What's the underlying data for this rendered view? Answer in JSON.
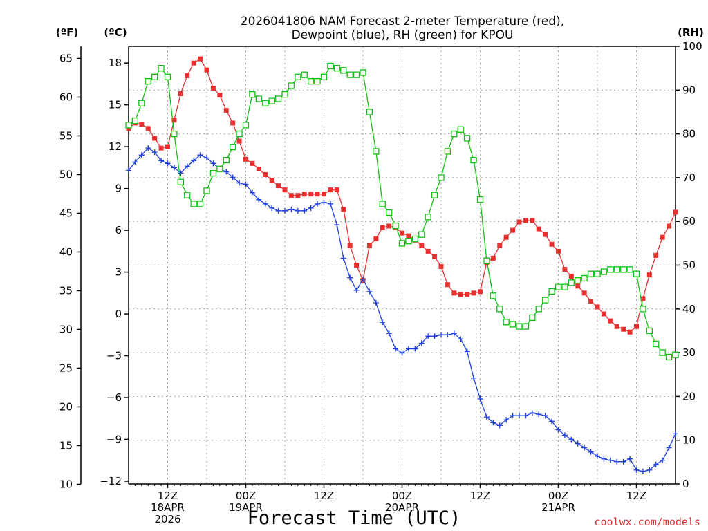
{
  "title_line1": "2026041806 NAM Forecast 2-meter Temperature (red),",
  "title_line2": "Dewpoint (blue), RH (green) for KPOU",
  "unit_left_f": "(ºF)",
  "unit_left_c": "(ºC)",
  "unit_right": "(RH)",
  "xlabel": "Forecast Time (UTC)",
  "credit": "coolwx.com/models",
  "colors": {
    "temperature": "#e83030",
    "dewpoint": "#2040e0",
    "rh": "#10c010"
  },
  "chart_data": {
    "type": "line",
    "x_unit": "forecast hour from 2026-04-18 06Z",
    "x_range": [
      0,
      84
    ],
    "x_ticks": [
      {
        "x": 6,
        "lines": [
          "12Z",
          "18APR",
          "2026"
        ]
      },
      {
        "x": 18,
        "lines": [
          "00Z",
          "19APR"
        ]
      },
      {
        "x": 30,
        "lines": [
          "12Z"
        ]
      },
      {
        "x": 42,
        "lines": [
          "00Z",
          "20APR"
        ]
      },
      {
        "x": 54,
        "lines": [
          "12Z"
        ]
      },
      {
        "x": 66,
        "lines": [
          "00Z",
          "21APR"
        ]
      },
      {
        "x": 78,
        "lines": [
          "12Z"
        ]
      }
    ],
    "y_celsius": {
      "range": [
        -12.2,
        19.2
      ],
      "ticks": [
        18,
        15,
        12,
        9,
        6,
        3,
        0,
        -3,
        -6,
        -9,
        -12
      ],
      "tick_labels": [
        "18",
        "15",
        "12",
        "9",
        "6",
        "3",
        "0",
        "−3",
        "−6",
        "−9",
        "−12"
      ]
    },
    "y_fahrenheit": {
      "ticks": [
        65,
        60,
        55,
        50,
        45,
        40,
        35,
        30,
        25,
        20,
        15,
        10
      ]
    },
    "y_rh": {
      "range": [
        0,
        100
      ],
      "ticks": [
        100,
        90,
        80,
        70,
        60,
        50,
        40,
        30,
        20,
        10,
        0
      ]
    },
    "series": [
      {
        "name": "Temperature",
        "unit": "C",
        "marker": "filled-square",
        "x": [
          0,
          1,
          2,
          3,
          4,
          5,
          6,
          7,
          8,
          9,
          10,
          11,
          12,
          13,
          14,
          15,
          16,
          17,
          18,
          19,
          20,
          21,
          22,
          23,
          24,
          25,
          26,
          27,
          28,
          29,
          30,
          31,
          32,
          33,
          34,
          35,
          36,
          37,
          38,
          39,
          40,
          41,
          42,
          43,
          44,
          45,
          46,
          47,
          48,
          49,
          50,
          51,
          52,
          53,
          54,
          55,
          56,
          57,
          58,
          59,
          60,
          61,
          62,
          63,
          64,
          65,
          66,
          67,
          68,
          69,
          70,
          71,
          72,
          73,
          74,
          75,
          76,
          77,
          78,
          79,
          80,
          81,
          82,
          83,
          84
        ],
        "values": [
          13.3,
          13.7,
          13.6,
          13.3,
          12.6,
          11.9,
          12.0,
          13.9,
          15.8,
          17.1,
          18.0,
          18.3,
          17.5,
          16.2,
          15.7,
          14.6,
          13.7,
          12.4,
          11.1,
          10.8,
          10.4,
          10.0,
          9.6,
          9.2,
          8.9,
          8.5,
          8.5,
          8.6,
          8.6,
          8.6,
          8.6,
          8.9,
          8.9,
          7.5,
          4.9,
          3.5,
          2.4,
          4.9,
          5.4,
          6.2,
          6.3,
          6.2,
          5.8,
          5.6,
          5.3,
          4.9,
          4.5,
          4.1,
          3.4,
          2.1,
          1.5,
          1.4,
          1.4,
          1.5,
          1.6,
          3.7,
          4.0,
          4.9,
          5.5,
          6.0,
          6.6,
          6.7,
          6.7,
          6.1,
          5.7,
          5.0,
          4.5,
          3.2,
          2.7,
          2.0,
          1.5,
          0.9,
          0.5,
          0.0,
          -0.5,
          -0.9,
          -1.1,
          -1.3,
          -0.9,
          1.1,
          2.8,
          4.2,
          5.5,
          6.3,
          7.3
        ]
      },
      {
        "name": "Dewpoint",
        "unit": "C",
        "marker": "plus",
        "x": [
          0,
          1,
          2,
          3,
          4,
          5,
          6,
          7,
          8,
          9,
          10,
          11,
          12,
          13,
          14,
          15,
          16,
          17,
          18,
          19,
          20,
          21,
          22,
          23,
          24,
          25,
          26,
          27,
          28,
          29,
          30,
          31,
          32,
          33,
          34,
          35,
          36,
          37,
          38,
          39,
          40,
          41,
          42,
          43,
          44,
          45,
          46,
          47,
          48,
          49,
          50,
          51,
          52,
          53,
          54,
          55,
          56,
          57,
          58,
          59,
          60,
          61,
          62,
          63,
          64,
          65,
          66,
          67,
          68,
          69,
          70,
          71,
          72,
          73,
          74,
          75,
          76,
          77,
          78,
          79,
          80,
          81,
          82,
          83,
          84
        ],
        "values": [
          10.3,
          10.9,
          11.4,
          11.9,
          11.6,
          11.0,
          10.8,
          10.5,
          10.1,
          10.6,
          11.0,
          11.4,
          11.2,
          10.8,
          10.4,
          10.2,
          9.8,
          9.4,
          9.3,
          8.7,
          8.2,
          7.9,
          7.6,
          7.4,
          7.4,
          7.5,
          7.4,
          7.4,
          7.6,
          7.9,
          8.0,
          7.9,
          6.4,
          4.0,
          2.6,
          1.7,
          2.5,
          1.6,
          0.8,
          -0.6,
          -1.4,
          -2.5,
          -2.8,
          -2.5,
          -2.5,
          -2.1,
          -1.6,
          -1.6,
          -1.5,
          -1.5,
          -1.4,
          -1.8,
          -2.7,
          -4.6,
          -6.1,
          -7.4,
          -7.8,
          -8.0,
          -7.6,
          -7.3,
          -7.3,
          -7.3,
          -7.1,
          -7.2,
          -7.3,
          -7.7,
          -8.3,
          -8.7,
          -9.0,
          -9.3,
          -9.6,
          -9.9,
          -10.2,
          -10.4,
          -10.5,
          -10.6,
          -10.6,
          -10.4,
          -11.2,
          -11.3,
          -11.2,
          -10.8,
          -10.5,
          -9.6,
          -8.6
        ]
      },
      {
        "name": "RH",
        "unit": "%",
        "marker": "open-square",
        "x": [
          0,
          1,
          2,
          3,
          4,
          5,
          6,
          7,
          8,
          9,
          10,
          11,
          12,
          13,
          14,
          15,
          16,
          17,
          18,
          19,
          20,
          21,
          22,
          23,
          24,
          25,
          26,
          27,
          28,
          29,
          30,
          31,
          32,
          33,
          34,
          35,
          36,
          37,
          38,
          39,
          40,
          41,
          42,
          43,
          44,
          45,
          46,
          47,
          48,
          49,
          50,
          51,
          52,
          53,
          54,
          55,
          56,
          57,
          58,
          59,
          60,
          61,
          62,
          63,
          64,
          65,
          66,
          67,
          68,
          69,
          70,
          71,
          72,
          73,
          74,
          75,
          76,
          77,
          78,
          79,
          80,
          81,
          82,
          83,
          84
        ],
        "values": [
          82,
          83,
          87,
          92,
          93,
          95,
          93,
          80,
          69,
          66,
          64,
          64,
          67,
          71,
          72,
          74,
          77,
          80,
          82,
          89,
          88,
          87,
          87.5,
          88,
          89,
          91,
          93,
          93.5,
          92,
          92,
          93,
          95.5,
          95,
          94.5,
          93.5,
          93.5,
          94,
          85,
          76,
          64,
          62,
          59,
          55,
          55.5,
          56,
          57,
          61,
          66,
          70,
          76,
          80,
          81,
          79,
          74,
          65,
          51,
          43,
          40,
          37,
          36.5,
          36,
          36,
          38,
          40,
          42,
          44,
          45,
          45,
          46,
          46.5,
          47,
          48,
          48,
          48.5,
          49,
          49,
          49,
          49,
          48,
          40,
          35,
          32,
          30,
          29,
          29.5
        ]
      }
    ],
    "grid": true,
    "legend": "none (described in title)"
  }
}
